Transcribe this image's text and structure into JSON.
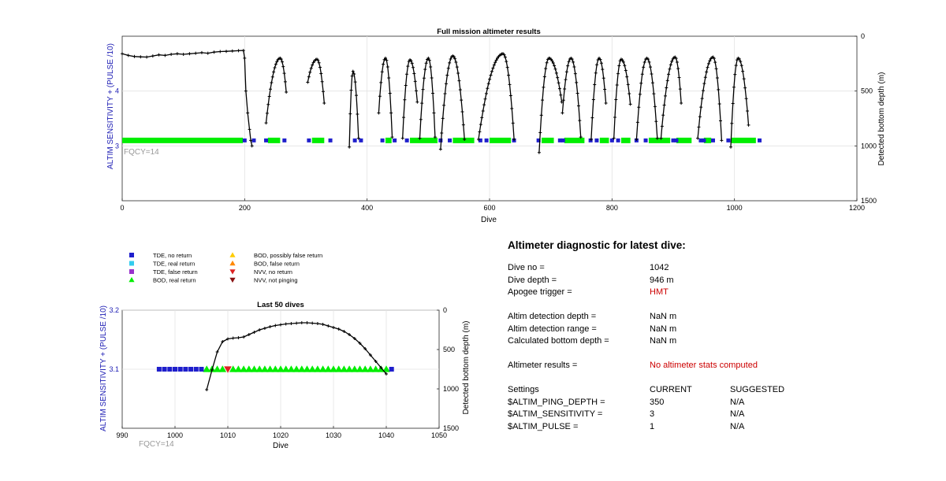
{
  "chart_data": [
    {
      "type": "line",
      "title": "Full mission altimeter results",
      "xlabel": "Dive",
      "ylabel_left": "ALTIM SENSITIVITY + (PULSE /10)",
      "ylabel_right": "Detected bottom depth (m)",
      "xlim": [
        0,
        1200
      ],
      "ylim_left": [
        2,
        5
      ],
      "ylim_right": [
        1500,
        0
      ],
      "xticks": [
        "0",
        "200",
        "400",
        "600",
        "800",
        "1000",
        "1200"
      ],
      "yticks_left": [
        "3",
        "4"
      ],
      "yticks_right": [
        "0",
        "500",
        "1000",
        "1500"
      ],
      "annotation": "FQCY=14",
      "grid": true,
      "series": [
        {
          "name": "TDE, no return",
          "marker": "square",
          "color": "#1f1fcc",
          "y": 3.1,
          "ranges": [
            [
              200,
              215
            ],
            [
              235,
              265
            ],
            [
              305,
              340
            ],
            [
              380,
              390
            ],
            [
              425,
              445
            ],
            [
              465,
              520
            ],
            [
              535,
              585
            ],
            [
              595,
              640
            ],
            [
              680,
              715
            ],
            [
              720,
              765
            ],
            [
              775,
              800
            ],
            [
              810,
              840
            ],
            [
              855,
              900
            ],
            [
              905,
              945
            ],
            [
              950,
              965
            ],
            [
              990,
              1041
            ]
          ]
        },
        {
          "name": "BOD, real return",
          "marker": "triangle-up",
          "color": "#00ee00",
          "y": 3.1,
          "ranges": [
            [
              0,
              197
            ],
            [
              238,
              258
            ],
            [
              310,
              330
            ],
            [
              430,
              440
            ],
            [
              470,
              515
            ],
            [
              540,
              575
            ],
            [
              600,
              635
            ],
            [
              685,
              705
            ],
            [
              722,
              755
            ],
            [
              780,
              795
            ],
            [
              815,
              830
            ],
            [
              860,
              895
            ],
            [
              905,
              930
            ],
            [
              950,
              962
            ],
            [
              995,
              1035
            ]
          ]
        },
        {
          "name": "Detected bottom depth",
          "x": [
            0,
            10,
            20,
            30,
            40,
            50,
            60,
            70,
            80,
            90,
            100,
            110,
            120,
            130,
            140,
            150,
            160,
            170,
            180,
            190,
            198,
            200,
            202,
            205,
            208,
            210,
            212
          ],
          "depth": [
            160,
            175,
            185,
            188,
            190,
            180,
            170,
            175,
            165,
            160,
            165,
            160,
            155,
            150,
            155,
            145,
            140,
            138,
            135,
            132,
            130,
            200,
            500,
            700,
            850,
            950,
            1000
          ]
        },
        {
          "name": "dive profiles",
          "segments": [
            {
              "start": 235,
              "top": 258,
              "end": 268,
              "bottom_start": 790,
              "min": 200,
              "bottom_end": 510
            },
            {
              "start": 303,
              "top": 318,
              "end": 330,
              "bottom_start": 420,
              "min": 210,
              "bottom_end": 610
            },
            {
              "start": 371,
              "top": 377,
              "end": 386,
              "bottom_start": 1010,
              "min": 320,
              "bottom_end": 930
            },
            {
              "start": 419,
              "top": 430,
              "end": 441,
              "bottom_start": 700,
              "min": 200,
              "bottom_end": 920
            },
            {
              "start": 458,
              "top": 470,
              "end": 482,
              "bottom_start": 930,
              "min": 215,
              "bottom_end": 600
            },
            {
              "start": 486,
              "top": 500,
              "end": 511,
              "bottom_start": 930,
              "min": 200,
              "bottom_end": 920
            },
            {
              "start": 520,
              "top": 540,
              "end": 559,
              "bottom_start": 1030,
              "min": 180,
              "bottom_end": 940
            },
            {
              "start": 582,
              "top": 622,
              "end": 640,
              "bottom_start": 940,
              "min": 160,
              "bottom_end": 940
            },
            {
              "start": 681,
              "top": 697,
              "end": 718,
              "bottom_start": 1060,
              "min": 200,
              "bottom_end": 600
            },
            {
              "start": 719,
              "top": 733,
              "end": 749,
              "bottom_start": 700,
              "min": 200,
              "bottom_end": 920
            },
            {
              "start": 766,
              "top": 779,
              "end": 790,
              "bottom_start": 940,
              "min": 200,
              "bottom_end": 610
            },
            {
              "start": 803,
              "top": 815,
              "end": 830,
              "bottom_start": 930,
              "min": 210,
              "bottom_end": 620
            },
            {
              "start": 840,
              "top": 857,
              "end": 874,
              "bottom_start": 940,
              "min": 200,
              "bottom_end": 930
            },
            {
              "start": 880,
              "top": 903,
              "end": 913,
              "bottom_start": 930,
              "min": 190,
              "bottom_end": 610
            },
            {
              "start": 940,
              "top": 965,
              "end": 979,
              "bottom_start": 930,
              "min": 190,
              "bottom_end": 950
            },
            {
              "start": 994,
              "top": 1006,
              "end": 1023,
              "bottom_start": 1010,
              "min": 200,
              "bottom_end": 810
            }
          ]
        }
      ]
    },
    {
      "type": "line",
      "title": "Last 50 dives",
      "xlabel": "Dive",
      "ylabel_left": "ALTIM SENSITIVITY + (PULSE /10)",
      "ylabel_right": "Detected bottom depth (m)",
      "xlim": [
        990,
        1050
      ],
      "ylim_left": [
        3,
        3.2
      ],
      "ylim_right": [
        1500,
        0
      ],
      "xticks": [
        "990",
        "1000",
        "1010",
        "1020",
        "1030",
        "1040",
        "1050"
      ],
      "yticks_left": [
        "3.1",
        "3.2"
      ],
      "yticks_right": [
        "0",
        "500",
        "1000",
        "1500"
      ],
      "annotation": "FQCY=14",
      "grid": true,
      "series": [
        {
          "name": "TDE, no return",
          "marker": "square",
          "color": "#1f1fcc",
          "x": [
            997,
            998,
            999,
            1000,
            1001,
            1002,
            1003,
            1004,
            1005,
            1041
          ],
          "y": 3.1
        },
        {
          "name": "BOD, real return",
          "marker": "triangle-up",
          "color": "#00ee00",
          "x": [
            1006,
            1007,
            1008,
            1009,
            1011,
            1012,
            1013,
            1014,
            1015,
            1016,
            1017,
            1018,
            1019,
            1020,
            1021,
            1022,
            1023,
            1024,
            1025,
            1026,
            1027,
            1028,
            1029,
            1030,
            1031,
            1032,
            1033,
            1034,
            1035,
            1036,
            1037,
            1038,
            1039,
            1040
          ],
          "y": 3.1
        },
        {
          "name": "NVV, no return",
          "marker": "triangle-down",
          "color": "#dd2222",
          "x": [
            1010
          ],
          "y": 3.1
        },
        {
          "name": "Detected bottom depth",
          "x": [
            1006,
            1007,
            1008,
            1009,
            1010,
            1011,
            1012,
            1013,
            1014,
            1015,
            1016,
            1017,
            1018,
            1019,
            1020,
            1021,
            1022,
            1023,
            1024,
            1025,
            1026,
            1027,
            1028,
            1029,
            1030,
            1031,
            1032,
            1033,
            1034,
            1035,
            1036,
            1037,
            1038,
            1039,
            1040
          ],
          "depth": [
            1010,
            760,
            530,
            400,
            365,
            355,
            350,
            340,
            310,
            280,
            250,
            230,
            210,
            195,
            185,
            175,
            170,
            165,
            160,
            160,
            165,
            170,
            180,
            200,
            220,
            240,
            270,
            310,
            360,
            420,
            490,
            570,
            650,
            730,
            810
          ]
        }
      ]
    }
  ],
  "legend": [
    {
      "label": "TDE, no return",
      "marker": "square",
      "color": "#1f1fcc"
    },
    {
      "label": "TDE, real return",
      "marker": "square",
      "color": "#33ccee"
    },
    {
      "label": "TDE, false return",
      "marker": "square",
      "color": "#9933cc"
    },
    {
      "label": "BOD, real return",
      "marker": "triangle-up",
      "color": "#00ee00"
    },
    {
      "label": "BOD, possibly false return",
      "marker": "triangle-up",
      "color": "#ffcc00"
    },
    {
      "label": "BOD, false return",
      "marker": "triangle-up",
      "color": "#ff8800"
    },
    {
      "label": "NVV, no return",
      "marker": "triangle-down",
      "color": "#dd2222"
    },
    {
      "label": "NVV, not pinging",
      "marker": "triangle-down",
      "color": "#881111"
    }
  ],
  "diagnostic": {
    "title": "Altimeter diagnostic for latest dive:",
    "dive_no_label": "Dive no =",
    "dive_no": "1042",
    "dive_depth_label": "Dive depth =",
    "dive_depth": "946 m",
    "apogee_label": "Apogee trigger =",
    "apogee": "HMT",
    "altim_depth_label": "Altim detection depth =",
    "altim_depth": "NaN m",
    "altim_range_label": "Altim detection range =",
    "altim_range": "NaN m",
    "calc_bottom_label": "Calculated bottom depth =",
    "calc_bottom": "NaN m",
    "results_label": "Altimeter results =",
    "results": "No altimeter stats computed",
    "settings_label": "Settings",
    "current_label": "CURRENT",
    "suggested_label": "SUGGESTED",
    "ping_depth_label": "$ALTIM_PING_DEPTH =",
    "ping_depth_current": "350",
    "ping_depth_suggested": "N/A",
    "sensitivity_label": "$ALTIM_SENSITIVITY =",
    "sensitivity_current": "3",
    "sensitivity_suggested": "N/A",
    "pulse_label": "$ALTIM_PULSE =",
    "pulse_current": "1",
    "pulse_suggested": "N/A"
  }
}
